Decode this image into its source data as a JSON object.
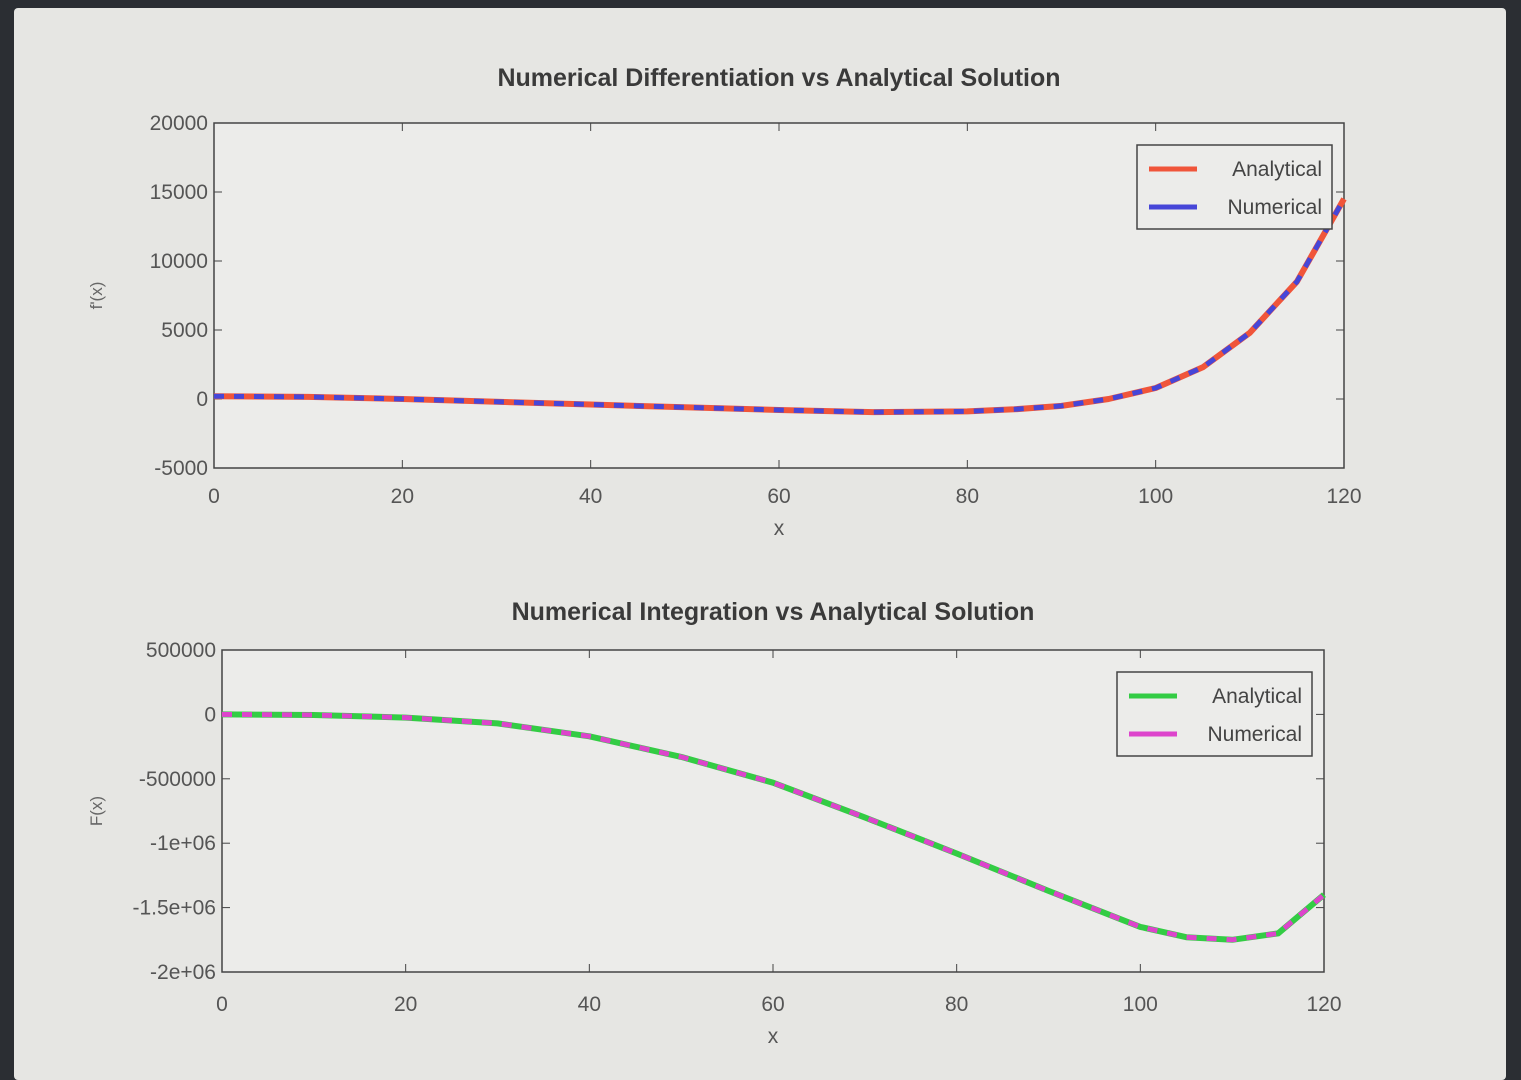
{
  "chart_data": [
    {
      "type": "line",
      "title": "Numerical Differentiation vs Analytical Solution",
      "xlabel": "x",
      "ylabel": "f'(x)",
      "xlim": [
        0,
        120
      ],
      "ylim": [
        -5000,
        20000
      ],
      "xticks": [
        "0",
        "20",
        "40",
        "60",
        "80",
        "100",
        "120"
      ],
      "yticks": [
        "20000",
        "15000",
        "10000",
        "5000",
        "0",
        "-5000"
      ],
      "legend_position": "top-right",
      "grid": false,
      "x": [
        0,
        10,
        20,
        30,
        40,
        50,
        60,
        70,
        80,
        85,
        90,
        95,
        100,
        105,
        110,
        115,
        120
      ],
      "series": [
        {
          "name": "Analytical",
          "color": "#f0553a",
          "style": "solid",
          "values": [
            200,
            150,
            0,
            -200,
            -400,
            -600,
            -800,
            -950,
            -900,
            -750,
            -500,
            0,
            800,
            2300,
            4800,
            8500,
            14500
          ]
        },
        {
          "name": "Numerical",
          "color": "#4646d8",
          "style": "dashed",
          "values": [
            200,
            150,
            0,
            -200,
            -400,
            -600,
            -800,
            -950,
            -900,
            -750,
            -500,
            0,
            800,
            2300,
            4800,
            8500,
            14500
          ]
        }
      ]
    },
    {
      "type": "line",
      "title": "Numerical Integration vs Analytical Solution",
      "xlabel": "x",
      "ylabel": "F(x)",
      "xlim": [
        0,
        120
      ],
      "ylim": [
        -2000000,
        500000
      ],
      "xticks": [
        "0",
        "20",
        "40",
        "60",
        "80",
        "100",
        "120"
      ],
      "yticks": [
        "500000",
        "0",
        "-500000",
        "-1e+06",
        "-1.5e+06",
        "-2e+06"
      ],
      "legend_position": "top-right",
      "grid": false,
      "x": [
        0,
        10,
        20,
        30,
        40,
        50,
        60,
        70,
        80,
        90,
        100,
        105,
        110,
        115,
        120
      ],
      "series": [
        {
          "name": "Analytical",
          "color": "#33cc44",
          "style": "solid",
          "values": [
            0,
            -5000,
            -25000,
            -70000,
            -170000,
            -330000,
            -530000,
            -800000,
            -1080000,
            -1370000,
            -1650000,
            -1730000,
            -1750000,
            -1700000,
            -1400000
          ]
        },
        {
          "name": "Numerical",
          "color": "#dd44cc",
          "style": "dashed",
          "values": [
            0,
            -5000,
            -25000,
            -70000,
            -170000,
            -330000,
            -530000,
            -800000,
            -1080000,
            -1370000,
            -1650000,
            -1730000,
            -1750000,
            -1700000,
            -1400000
          ]
        }
      ]
    }
  ]
}
